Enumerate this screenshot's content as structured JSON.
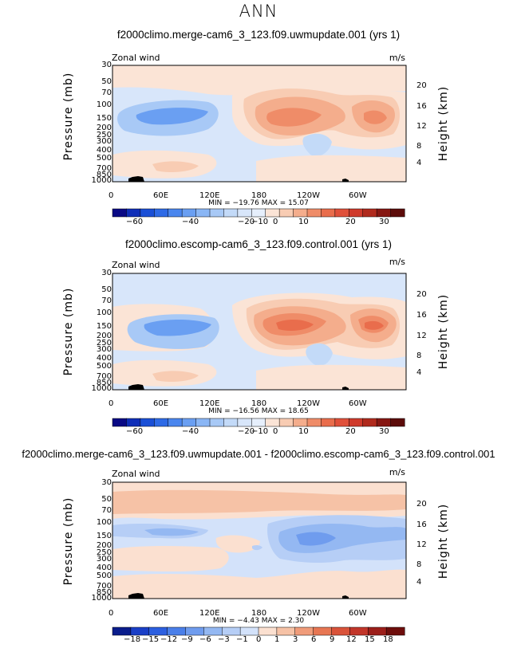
{
  "figure": {
    "title": "ANN"
  },
  "panels": [
    {
      "title": "f2000climo.merge-cam6_3_123.f09.uwmupdate.001 (yrs 1)",
      "field_label": "Zonal wind",
      "units": "m/s",
      "minmax": "MIN = −19.76   MAX =  15.07"
    },
    {
      "title": "f2000climo.escomp-cam6_3_123.f09.control.001 (yrs 1)",
      "field_label": "Zonal wind",
      "units": "m/s",
      "minmax": "MIN = −16.56   MAX =  18.65"
    },
    {
      "title": "f2000climo.merge-cam6_3_123.f09.uwmupdate.001 - f2000climo.escomp-cam6_3_123.f09.control.001",
      "field_label": "Zonal wind",
      "units": "m/s",
      "minmax": "MIN =  −4.43   MAX =   2.30"
    }
  ],
  "chart_data": [
    {
      "type": "heatmap",
      "title": "f2000climo.merge-cam6_3_123.f09.uwmupdate.001 (yrs 1)",
      "variable": "Zonal wind",
      "units": "m/s",
      "xlabel": "",
      "ylabel": "Pressure (mb)",
      "y2label": "Height (km)",
      "x_ticks": [
        "0",
        "60E",
        "120E",
        "180",
        "120W",
        "60W"
      ],
      "y_ticks": [
        "30",
        "50",
        "70",
        "100",
        "150",
        "200",
        "250",
        "300",
        "400",
        "500",
        "700",
        "850",
        "1000"
      ],
      "y2_ticks": [
        "20",
        "16",
        "12",
        "8",
        "4"
      ],
      "colorbar_levels": [
        -70,
        -65,
        -60,
        -55,
        -50,
        -45,
        -40,
        -35,
        -30,
        -25,
        -20,
        -15,
        -10,
        -5,
        0,
        5,
        10,
        15,
        20,
        25,
        30,
        35
      ],
      "colorbar_labels": [
        "−60",
        "−40",
        "−20",
        "−10",
        "0",
        "10",
        "20",
        "30"
      ],
      "min": -19.76,
      "max": 15.07
    },
    {
      "type": "heatmap",
      "title": "f2000climo.escomp-cam6_3_123.f09.control.001 (yrs 1)",
      "variable": "Zonal wind",
      "units": "m/s",
      "xlabel": "",
      "ylabel": "Pressure (mb)",
      "y2label": "Height (km)",
      "x_ticks": [
        "0",
        "60E",
        "120E",
        "180",
        "120W",
        "60W"
      ],
      "y_ticks": [
        "30",
        "50",
        "70",
        "100",
        "150",
        "200",
        "250",
        "300",
        "400",
        "500",
        "700",
        "850",
        "1000"
      ],
      "y2_ticks": [
        "20",
        "16",
        "12",
        "8",
        "4"
      ],
      "colorbar_levels": [
        -70,
        -65,
        -60,
        -55,
        -50,
        -45,
        -40,
        -35,
        -30,
        -25,
        -20,
        -15,
        -10,
        -5,
        0,
        5,
        10,
        15,
        20,
        25,
        30,
        35
      ],
      "colorbar_labels": [
        "−60",
        "−40",
        "−20",
        "−10",
        "0",
        "10",
        "20",
        "30"
      ],
      "min": -16.56,
      "max": 18.65
    },
    {
      "type": "heatmap",
      "title": "f2000climo.merge-cam6_3_123.f09.uwmupdate.001 - f2000climo.escomp-cam6_3_123.f09.control.001",
      "variable": "Zonal wind",
      "units": "m/s",
      "xlabel": "",
      "ylabel": "Pressure (mb)",
      "y2label": "Height (km)",
      "x_ticks": [
        "0",
        "60E",
        "120E",
        "180",
        "120W",
        "60W"
      ],
      "y_ticks": [
        "30",
        "50",
        "70",
        "100",
        "150",
        "200",
        "250",
        "300",
        "400",
        "500",
        "700",
        "850",
        "1000"
      ],
      "y2_ticks": [
        "20",
        "16",
        "12",
        "8",
        "4"
      ],
      "colorbar_levels": [
        -21,
        -18,
        -15,
        -12,
        -9,
        -6,
        -3,
        -1,
        0,
        1,
        3,
        6,
        9,
        12,
        15,
        18,
        21
      ],
      "colorbar_labels": [
        "−18",
        "−15",
        "−12",
        "−9",
        "−6",
        "−3",
        "−1",
        "0",
        "1",
        "3",
        "6",
        "9",
        "12",
        "15",
        "18"
      ],
      "min": -4.43,
      "max": 2.3
    }
  ],
  "colors": {
    "cbar_main": [
      "#0a0a85",
      "#0f2eb8",
      "#1a4fd6",
      "#2e6ae6",
      "#4a86ee",
      "#6a9ff2",
      "#8ab6f5",
      "#a8c9f6",
      "#c3daf8",
      "#d8e6fa",
      "#e6effc",
      "#fbe4d6",
      "#f8ccb3",
      "#f4ad8c",
      "#ef8c68",
      "#e96d4c",
      "#e0503a",
      "#cf3a2b",
      "#b02a1d",
      "#861712",
      "#5c0c0a"
    ],
    "cbar_diff": [
      "#0a1d8c",
      "#1a3fc7",
      "#2c5fe0",
      "#4a7fe9",
      "#6f9cee",
      "#94b8f2",
      "#b6cef6",
      "#d3e2fa",
      "#fbe0d0",
      "#f6c2a6",
      "#f09c7a",
      "#e77653",
      "#d9533a",
      "#c2362a",
      "#9c1f1a",
      "#6e0e0c"
    ]
  }
}
